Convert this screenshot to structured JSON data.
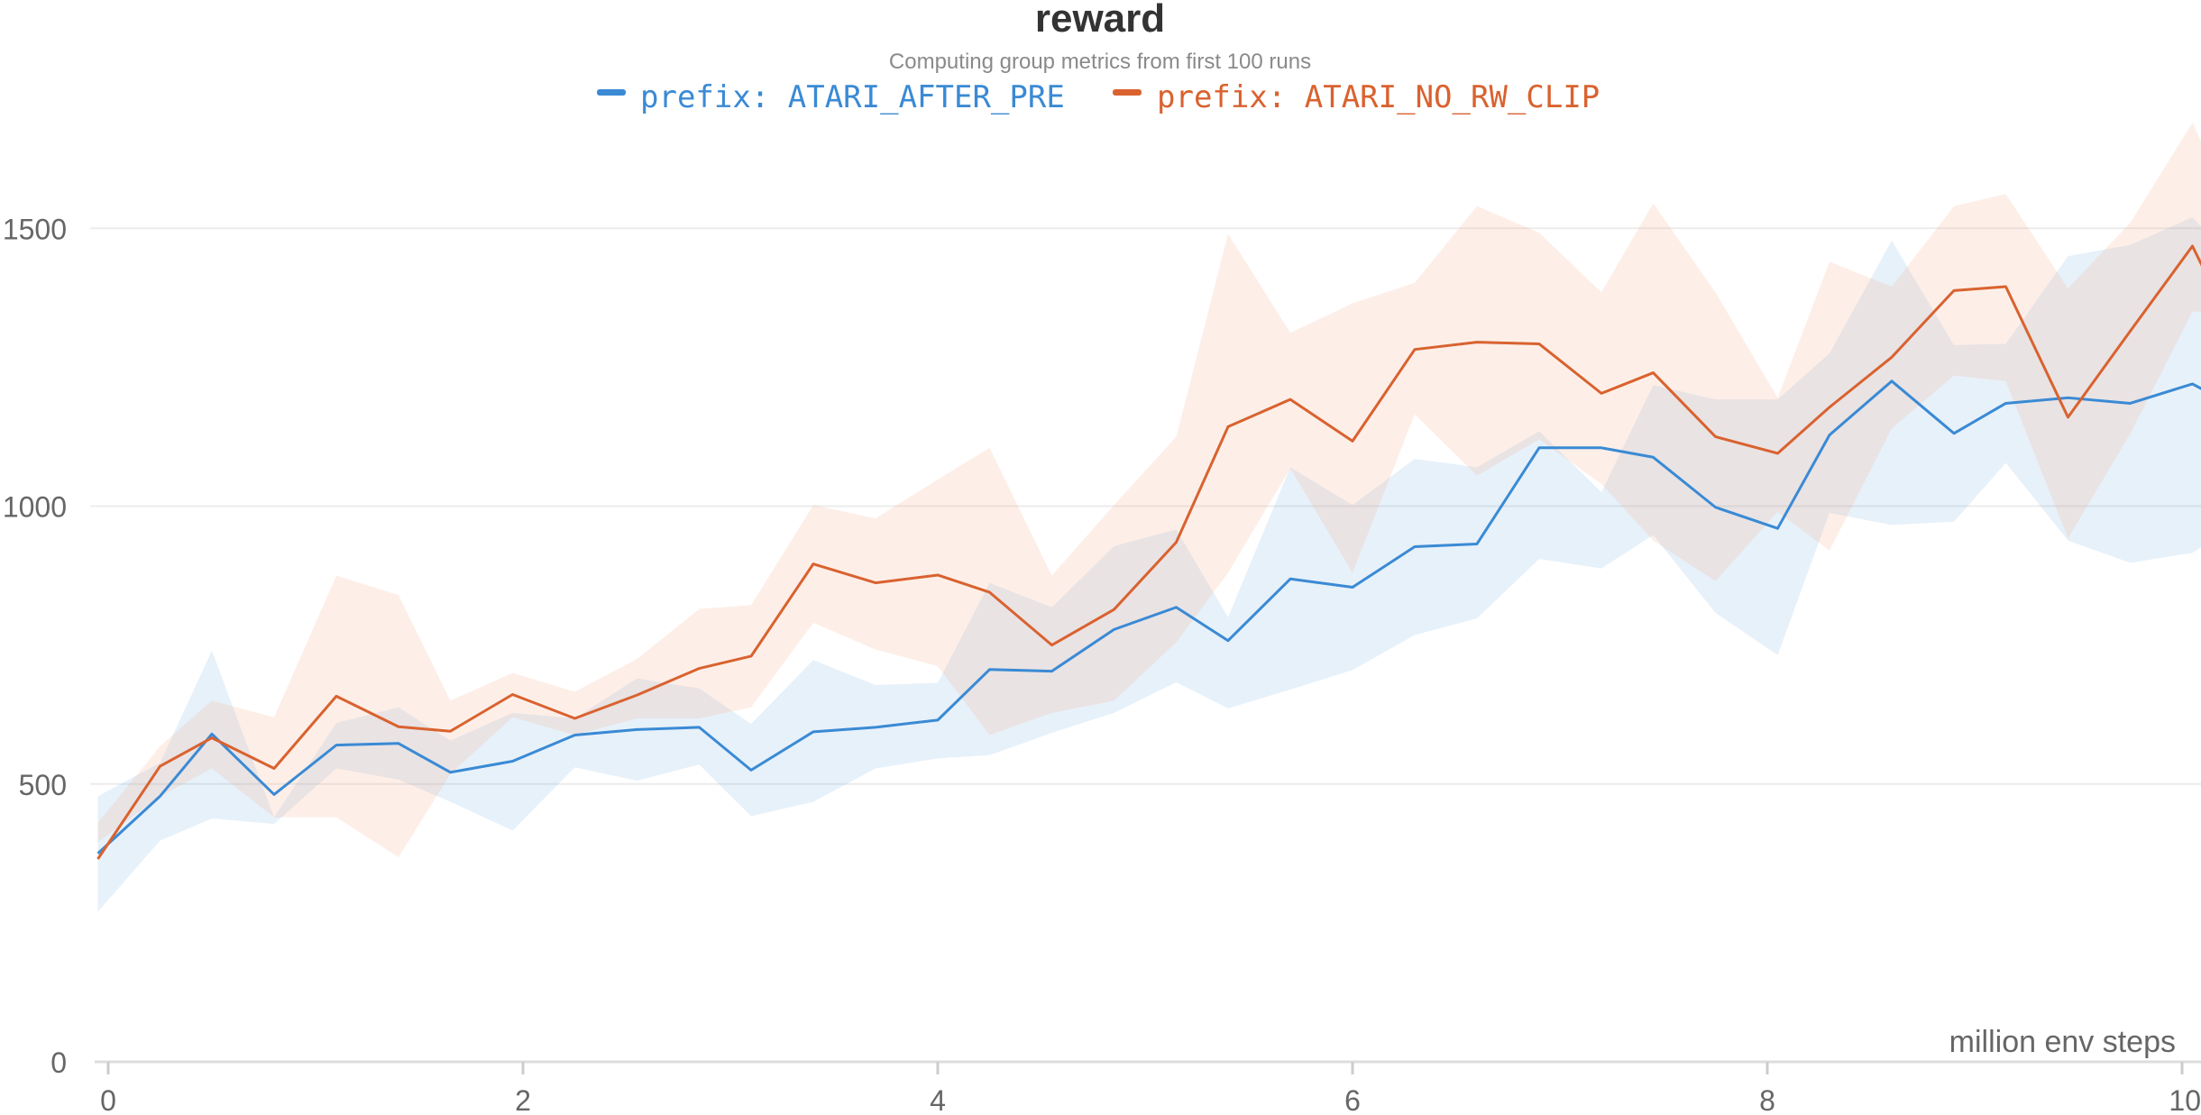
{
  "chart_data": {
    "type": "line",
    "title": "reward",
    "subtitle": "Computing group metrics from first 100 runs",
    "xlabel": "million env steps",
    "ylabel": "",
    "xlim": [
      -0.1,
      10
    ],
    "ylim": [
      0,
      1700
    ],
    "x_ticks": [
      0,
      2,
      4,
      6,
      8,
      10
    ],
    "y_ticks": [
      0,
      500,
      1000,
      1500
    ],
    "grid": true,
    "legend_position": "top-center",
    "series": [
      {
        "name": "prefix: ATARI_AFTER_PRE",
        "color": "#3a8ad4",
        "band_color": "#3a8ad4",
        "points": [
          [
            -0.05,
            375
          ],
          [
            0.25,
            478
          ],
          [
            0.5,
            590
          ],
          [
            0.8,
            481
          ],
          [
            1.1,
            570
          ],
          [
            1.4,
            573
          ],
          [
            1.65,
            521
          ],
          [
            1.95,
            541
          ],
          [
            2.25,
            588
          ],
          [
            2.55,
            598
          ],
          [
            2.85,
            602
          ],
          [
            3.1,
            525
          ],
          [
            3.4,
            594
          ],
          [
            3.7,
            602
          ],
          [
            4.0,
            615
          ],
          [
            4.25,
            706
          ],
          [
            4.55,
            703
          ],
          [
            4.85,
            778
          ],
          [
            5.15,
            818
          ],
          [
            5.4,
            758
          ],
          [
            5.7,
            869
          ],
          [
            6.0,
            854
          ],
          [
            6.3,
            927
          ],
          [
            6.6,
            932
          ],
          [
            6.9,
            1105
          ],
          [
            7.2,
            1105
          ],
          [
            7.45,
            1088
          ],
          [
            7.75,
            998
          ],
          [
            8.05,
            960
          ],
          [
            8.3,
            1128
          ],
          [
            8.6,
            1225
          ],
          [
            8.9,
            1131
          ],
          [
            9.15,
            1185
          ],
          [
            9.45,
            1195
          ],
          [
            9.75,
            1185
          ],
          [
            10.05,
            1220
          ],
          [
            10.1,
            1210
          ]
        ],
        "lower": [
          [
            -0.05,
            270
          ],
          [
            0.25,
            398
          ],
          [
            0.5,
            438
          ],
          [
            0.8,
            428
          ],
          [
            1.1,
            528
          ],
          [
            1.4,
            508
          ],
          [
            1.65,
            468
          ],
          [
            1.95,
            416
          ],
          [
            2.25,
            530
          ],
          [
            2.55,
            506
          ],
          [
            2.85,
            535
          ],
          [
            3.1,
            442
          ],
          [
            3.4,
            468
          ],
          [
            3.7,
            528
          ],
          [
            4.0,
            546
          ],
          [
            4.25,
            552
          ],
          [
            4.55,
            592
          ],
          [
            4.85,
            628
          ],
          [
            5.15,
            683
          ],
          [
            5.4,
            636
          ],
          [
            5.7,
            670
          ],
          [
            6.0,
            705
          ],
          [
            6.3,
            768
          ],
          [
            6.6,
            798
          ],
          [
            6.9,
            905
          ],
          [
            7.2,
            888
          ],
          [
            7.45,
            948
          ],
          [
            7.75,
            808
          ],
          [
            8.05,
            732
          ],
          [
            8.3,
            988
          ],
          [
            8.6,
            966
          ],
          [
            8.9,
            972
          ],
          [
            9.15,
            1078
          ],
          [
            9.45,
            938
          ],
          [
            9.75,
            898
          ],
          [
            10.05,
            916
          ],
          [
            10.1,
            928
          ]
        ],
        "upper": [
          [
            -0.05,
            478
          ],
          [
            0.25,
            538
          ],
          [
            0.5,
            740
          ],
          [
            0.8,
            440
          ],
          [
            1.1,
            610
          ],
          [
            1.4,
            638
          ],
          [
            1.65,
            578
          ],
          [
            1.95,
            628
          ],
          [
            2.25,
            618
          ],
          [
            2.55,
            690
          ],
          [
            2.85,
            672
          ],
          [
            3.1,
            608
          ],
          [
            3.4,
            723
          ],
          [
            3.7,
            678
          ],
          [
            4.0,
            682
          ],
          [
            4.25,
            862
          ],
          [
            4.55,
            818
          ],
          [
            4.85,
            928
          ],
          [
            5.15,
            958
          ],
          [
            5.4,
            800
          ],
          [
            5.7,
            1070
          ],
          [
            6.0,
            1002
          ],
          [
            6.3,
            1085
          ],
          [
            6.6,
            1070
          ],
          [
            6.9,
            1135
          ],
          [
            7.2,
            1025
          ],
          [
            7.45,
            1218
          ],
          [
            7.75,
            1192
          ],
          [
            8.05,
            1192
          ],
          [
            8.3,
            1275
          ],
          [
            8.6,
            1478
          ],
          [
            8.9,
            1290
          ],
          [
            9.15,
            1292
          ],
          [
            9.45,
            1450
          ],
          [
            9.75,
            1470
          ],
          [
            10.05,
            1520
          ],
          [
            10.1,
            1500
          ]
        ]
      },
      {
        "name": "prefix: ATARI_NO_RW_CLIP",
        "color": "#d9622f",
        "band_color": "#f4a582",
        "points": [
          [
            -0.05,
            365
          ],
          [
            0.25,
            532
          ],
          [
            0.5,
            583
          ],
          [
            0.8,
            528
          ],
          [
            1.1,
            658
          ],
          [
            1.4,
            603
          ],
          [
            1.65,
            595
          ],
          [
            1.95,
            661
          ],
          [
            2.25,
            618
          ],
          [
            2.55,
            660
          ],
          [
            2.85,
            708
          ],
          [
            3.1,
            730
          ],
          [
            3.4,
            896
          ],
          [
            3.7,
            862
          ],
          [
            4.0,
            876
          ],
          [
            4.25,
            845
          ],
          [
            4.55,
            750
          ],
          [
            4.85,
            814
          ],
          [
            5.15,
            935
          ],
          [
            5.4,
            1143
          ],
          [
            5.7,
            1192
          ],
          [
            6.0,
            1117
          ],
          [
            6.3,
            1282
          ],
          [
            6.6,
            1295
          ],
          [
            6.9,
            1292
          ],
          [
            7.2,
            1203
          ],
          [
            7.45,
            1240
          ],
          [
            7.75,
            1125
          ],
          [
            8.05,
            1095
          ],
          [
            8.3,
            1178
          ],
          [
            8.6,
            1268
          ],
          [
            8.9,
            1388
          ],
          [
            9.15,
            1395
          ],
          [
            9.45,
            1160
          ],
          [
            9.75,
            1315
          ],
          [
            10.05,
            1468
          ],
          [
            10.1,
            1430
          ]
        ],
        "lower": [
          [
            -0.05,
            395
          ],
          [
            0.25,
            478
          ],
          [
            0.5,
            528
          ],
          [
            0.8,
            440
          ],
          [
            1.1,
            440
          ],
          [
            1.4,
            368
          ],
          [
            1.65,
            518
          ],
          [
            1.95,
            620
          ],
          [
            2.25,
            588
          ],
          [
            2.55,
            618
          ],
          [
            2.85,
            618
          ],
          [
            3.1,
            638
          ],
          [
            3.4,
            790
          ],
          [
            3.7,
            742
          ],
          [
            4.0,
            712
          ],
          [
            4.25,
            588
          ],
          [
            4.55,
            628
          ],
          [
            4.85,
            650
          ],
          [
            5.15,
            755
          ],
          [
            5.4,
            880
          ],
          [
            5.7,
            1068
          ],
          [
            6.0,
            880
          ],
          [
            6.3,
            1165
          ],
          [
            6.6,
            1055
          ],
          [
            6.9,
            1120
          ],
          [
            7.2,
            1040
          ],
          [
            7.45,
            938
          ],
          [
            7.75,
            865
          ],
          [
            8.05,
            990
          ],
          [
            8.3,
            920
          ],
          [
            8.6,
            1140
          ],
          [
            8.9,
            1235
          ],
          [
            9.15,
            1225
          ],
          [
            9.45,
            942
          ],
          [
            9.75,
            1130
          ],
          [
            10.05,
            1350
          ],
          [
            10.1,
            1350
          ]
        ],
        "upper": [
          [
            -0.05,
            430
          ],
          [
            0.25,
            568
          ],
          [
            0.5,
            650
          ],
          [
            0.8,
            620
          ],
          [
            1.1,
            875
          ],
          [
            1.4,
            840
          ],
          [
            1.65,
            650
          ],
          [
            1.95,
            700
          ],
          [
            2.25,
            666
          ],
          [
            2.55,
            725
          ],
          [
            2.85,
            815
          ],
          [
            3.1,
            822
          ],
          [
            3.4,
            1002
          ],
          [
            3.7,
            978
          ],
          [
            4.0,
            1048
          ],
          [
            4.25,
            1105
          ],
          [
            4.55,
            875
          ],
          [
            4.85,
            1002
          ],
          [
            5.15,
            1125
          ],
          [
            5.4,
            1490
          ],
          [
            5.7,
            1312
          ],
          [
            6.0,
            1365
          ],
          [
            6.3,
            1402
          ],
          [
            6.6,
            1540
          ],
          [
            6.9,
            1492
          ],
          [
            7.2,
            1385
          ],
          [
            7.45,
            1545
          ],
          [
            7.75,
            1385
          ],
          [
            8.05,
            1195
          ],
          [
            8.3,
            1440
          ],
          [
            8.6,
            1395
          ],
          [
            8.9,
            1540
          ],
          [
            9.15,
            1562
          ],
          [
            9.45,
            1392
          ],
          [
            9.75,
            1510
          ],
          [
            10.05,
            1690
          ],
          [
            10.1,
            1650
          ]
        ]
      }
    ]
  }
}
